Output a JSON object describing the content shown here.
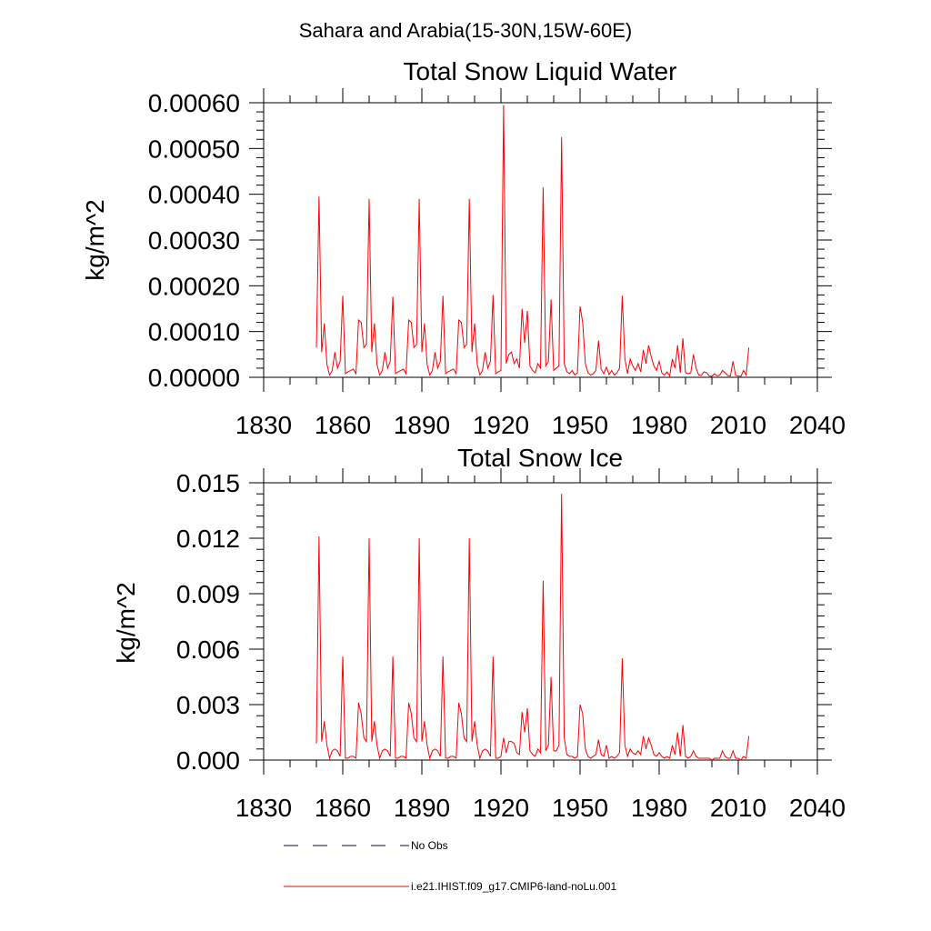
{
  "figure": {
    "suptitle": "Sahara and Arabia(15-30N,15W-60E)"
  },
  "legend": [
    {
      "label": "No Obs",
      "color": "#000080",
      "style": "dashed"
    },
    {
      "label": "i.e21.IHIST.f09_g17.CMIP6-land-noLu.001",
      "color": "#ff0000",
      "style": "solid"
    }
  ],
  "chart_data": [
    {
      "type": "line",
      "title": "Total Snow Liquid Water",
      "xlabel": "",
      "ylabel": "kg/m^2",
      "xlim": [
        1830,
        2040
      ],
      "ylim": [
        0,
        0.0006
      ],
      "x_ticks": [
        1830,
        1860,
        1890,
        1920,
        1950,
        1980,
        2010,
        2040
      ],
      "x_tick_labels": [
        "1830",
        "1860",
        "1890",
        "1920",
        "1950",
        "1980",
        "2010",
        "2040"
      ],
      "y_ticks": [
        0,
        0.0001,
        0.0002,
        0.0003,
        0.0004,
        0.0005,
        0.0006
      ],
      "y_tick_labels": [
        "0.00000",
        "0.00010",
        "0.00020",
        "0.00030",
        "0.00040",
        "0.00050",
        "0.00060"
      ],
      "grid": false,
      "series": [
        {
          "name": "i.e21.IHIST.f09_g17.CMIP6-land-noLu.001",
          "color": "#ff0000",
          "x_start": 1850,
          "x_step": 1,
          "values": [
            6.5e-05,
            0.000395,
            5.5e-05,
            0.000118,
            2.8e-05,
            5e-06,
            1.5e-05,
            5.5e-05,
            2e-05,
            3.5e-05,
            0.000178,
            8e-06,
            1.2e-05,
            1.5e-05,
            1.8e-05,
            8e-06,
            0.000125,
            0.00012,
            6.5e-05,
            7.2e-05,
            0.00039,
            5.5e-05,
            0.000118,
            2.8e-05,
            5e-06,
            1.5e-05,
            5.5e-05,
            2e-05,
            3.5e-05,
            0.000176,
            8e-06,
            1.2e-05,
            1.5e-05,
            1.8e-05,
            8e-06,
            0.000125,
            0.00012,
            6.5e-05,
            7.2e-05,
            0.00039,
            5.5e-05,
            0.000118,
            2.8e-05,
            5e-06,
            1.5e-05,
            5.5e-05,
            2e-05,
            3.5e-05,
            0.000178,
            8e-06,
            1.2e-05,
            1.5e-05,
            1.8e-05,
            8e-06,
            0.000125,
            0.00012,
            6.5e-05,
            7.2e-05,
            0.00039,
            5.5e-05,
            0.000118,
            2.8e-05,
            5e-06,
            1.5e-05,
            5.5e-05,
            2e-05,
            3.5e-05,
            0.00018,
            8e-06,
            1.2e-05,
            1.5e-05,
            0.000595,
            3e-05,
            5e-05,
            5.5e-05,
            3e-05,
            4e-05,
            2e-05,
            0.00015,
            7.5e-05,
            0.000145,
            2.5e-05,
            1.5e-05,
            1e-05,
            3e-05,
            2e-05,
            0.000415,
            2.5e-05,
            3.5e-05,
            0.00017,
            1.5e-05,
            2e-05,
            2.5e-05,
            0.000525,
            3e-05,
            1.2e-05,
            8e-06,
            1.5e-05,
            5e-06,
            1e-05,
            0.000155,
            0.00012,
            3e-05,
            1e-05,
            5e-06,
            8e-06,
            1.5e-05,
            8e-05,
            1.8e-05,
            8e-06,
            2.2e-05,
            6e-06,
            1.5e-05,
            5e-06,
            1e-05,
            2e-05,
            0.000178,
            4e-05,
            8e-06,
            4e-05,
            2.5e-05,
            1.5e-05,
            3e-05,
            1.2e-05,
            6e-05,
            3e-05,
            7e-05,
            4.5e-05,
            2.5e-05,
            1.5e-05,
            3.5e-05,
            1e-05,
            5e-06,
            1.2e-05,
            3e-06,
            4e-05,
            2e-05,
            7e-05,
            1e-05,
            8.5e-05,
            1e-05,
            8e-06,
            1e-05,
            5e-05,
            2e-05,
            5e-06,
            4e-06,
            1.2e-05,
            1e-05,
            3e-06,
            2e-06,
            8e-06,
            3e-06,
            5e-06,
            1.5e-05,
            1e-05,
            4e-06,
            3e-06,
            3.5e-05,
            4e-06,
            3e-06,
            2e-06,
            1.5e-05,
            5e-06,
            6.5e-05
          ]
        }
      ]
    },
    {
      "type": "line",
      "title": "Total Snow Ice",
      "xlabel": "",
      "ylabel": "kg/m^2",
      "xlim": [
        1830,
        2040
      ],
      "ylim": [
        0,
        0.015
      ],
      "x_ticks": [
        1830,
        1860,
        1890,
        1920,
        1950,
        1980,
        2010,
        2040
      ],
      "x_tick_labels": [
        "1830",
        "1860",
        "1890",
        "1920",
        "1950",
        "1980",
        "2010",
        "2040"
      ],
      "y_ticks": [
        0,
        0.003,
        0.006,
        0.009,
        0.012,
        0.015
      ],
      "y_tick_labels": [
        "0.000",
        "0.003",
        "0.006",
        "0.009",
        "0.012",
        "0.015"
      ],
      "grid": false,
      "series": [
        {
          "name": "i.e21.IHIST.f09_g17.CMIP6-land-noLu.001",
          "color": "#ff0000",
          "x_start": 1850,
          "x_step": 1,
          "values": [
            0.0009,
            0.0121,
            0.001,
            0.0021,
            0.0008,
            0.0001,
            0.0005,
            0.0006,
            0.0005,
            0.0002,
            0.0056,
            0.0001,
            0.0001,
            0.0002,
            0.0002,
            0.0001,
            0.0031,
            0.0025,
            0.0012,
            0.001,
            0.012,
            0.001,
            0.0021,
            0.0008,
            0.0001,
            0.0005,
            0.0006,
            0.0005,
            0.0002,
            0.0056,
            0.0001,
            0.0001,
            0.0002,
            0.0002,
            0.0001,
            0.0031,
            0.0025,
            0.0012,
            0.001,
            0.012,
            0.001,
            0.0021,
            0.0008,
            0.0001,
            0.0005,
            0.0006,
            0.0005,
            0.0002,
            0.0056,
            0.0001,
            0.0001,
            0.0002,
            0.0002,
            0.0001,
            0.0031,
            0.0025,
            0.0012,
            0.001,
            0.012,
            0.001,
            0.0021,
            0.0008,
            0.0001,
            0.0005,
            0.0006,
            0.0005,
            0.0002,
            0.0056,
            0.0001,
            0.0001,
            0.0002,
            0.0012,
            0.0004,
            0.001,
            0.001,
            0.0009,
            0.0004,
            0.0003,
            0.0026,
            0.0015,
            0.0028,
            0.0005,
            0.0003,
            0.0002,
            0.0006,
            0.0004,
            0.0097,
            0.0005,
            0.0008,
            0.0045,
            0.0005,
            0.0005,
            0.0008,
            0.0144,
            0.0012,
            0.0003,
            0.0002,
            0.0002,
            0.0001,
            0.0002,
            0.003,
            0.0025,
            0.0006,
            0.0002,
            0.0001,
            0.0002,
            0.0003,
            0.0011,
            0.0003,
            0.0002,
            0.0008,
            0.0001,
            0.0002,
            0.0001,
            0.0002,
            0.0004,
            0.0055,
            0.0008,
            0.0002,
            0.0006,
            0.0004,
            0.0003,
            0.0005,
            0.0003,
            0.0013,
            0.0006,
            0.0012,
            0.0008,
            0.0003,
            0.0002,
            0.0004,
            0.0002,
            0.0001,
            0.0002,
            0.0001,
            0.0008,
            0.0003,
            0.0015,
            0.0002,
            0.0019,
            0.0002,
            0.0001,
            0.0002,
            0.0005,
            0.0002,
            0.0001,
            0.0001,
            0.0001,
            0.0001,
            0.0001,
            0.0,
            0.0001,
            0.0001,
            0.0001,
            0.0005,
            0.0002,
            0.0001,
            0.0001,
            0.0005,
            0.0001,
            0.0001,
            0.0,
            0.0002,
            0.0001,
            0.0013
          ]
        }
      ]
    }
  ]
}
